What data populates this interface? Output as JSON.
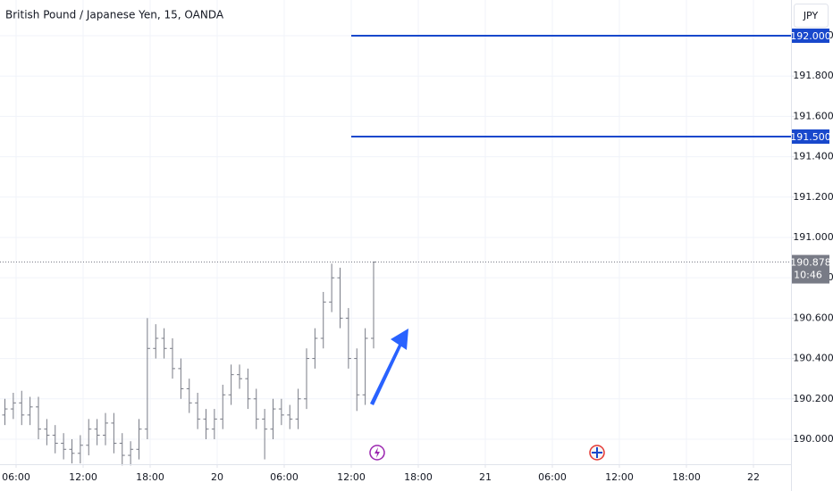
{
  "chart_data": {
    "type": "ohlc",
    "title": "British Pound / Japanese Yen, 15, OANDA",
    "currency": "JPY",
    "color": "#787b86",
    "grid": true,
    "x": [
      5,
      5.75,
      6.5,
      7.25,
      8,
      8.75,
      9.5,
      10.25,
      11,
      11.75,
      12.5,
      13.25,
      14,
      14.75,
      15.5,
      16.25,
      17,
      17.75,
      18.5,
      19.25,
      20,
      20.75,
      21.5,
      22.25,
      23,
      23.75,
      24.5,
      25.25,
      26,
      26.75,
      27.5,
      28.25,
      29,
      29.75,
      30.5,
      31.25,
      32,
      32.75,
      33.5,
      34.25,
      35,
      35.75,
      36.5,
      37.25,
      38
    ],
    "open": [
      190.12,
      190.15,
      190.18,
      190.12,
      190.16,
      190.05,
      190.02,
      189.98,
      189.95,
      189.93,
      189.97,
      190.05,
      190.02,
      190.08,
      189.98,
      189.92,
      189.95,
      190.05,
      190.45,
      190.5,
      190.45,
      190.35,
      190.25,
      190.18,
      190.1,
      190.05,
      190.1,
      190.22,
      190.32,
      190.3,
      190.2,
      190.1,
      190.05,
      190.15,
      190.12,
      190.1,
      190.2,
      190.4,
      190.5,
      190.68,
      190.8,
      190.6,
      190.4,
      190.22,
      190.5
    ],
    "high": [
      190.2,
      190.23,
      190.24,
      190.21,
      190.21,
      190.1,
      190.07,
      190.03,
      190.0,
      190.02,
      190.1,
      190.1,
      190.13,
      190.13,
      190.03,
      189.99,
      190.1,
      190.6,
      190.57,
      190.55,
      190.5,
      190.4,
      190.3,
      190.23,
      190.15,
      190.15,
      190.27,
      190.37,
      190.37,
      190.35,
      190.25,
      190.15,
      190.2,
      190.2,
      190.17,
      190.25,
      190.45,
      190.55,
      190.73,
      190.87,
      190.85,
      190.65,
      190.45,
      190.55,
      190.88
    ],
    "low": [
      190.07,
      190.1,
      190.07,
      190.07,
      190.0,
      189.97,
      189.93,
      189.9,
      189.88,
      189.88,
      189.92,
      189.97,
      189.97,
      189.93,
      189.87,
      189.87,
      189.9,
      190.0,
      190.4,
      190.4,
      190.3,
      190.2,
      190.13,
      190.05,
      190.0,
      190.0,
      190.05,
      190.17,
      190.25,
      190.15,
      190.05,
      189.9,
      190.0,
      190.07,
      190.05,
      190.05,
      190.15,
      190.35,
      190.45,
      190.63,
      190.55,
      190.35,
      190.14,
      190.17,
      190.45
    ],
    "close": [
      190.15,
      190.18,
      190.12,
      190.16,
      190.05,
      190.02,
      189.98,
      189.95,
      189.93,
      189.97,
      190.05,
      190.02,
      190.08,
      189.98,
      189.92,
      189.95,
      190.05,
      190.45,
      190.5,
      190.45,
      190.35,
      190.25,
      190.18,
      190.1,
      190.05,
      190.1,
      190.22,
      190.32,
      190.3,
      190.2,
      190.1,
      190.05,
      190.15,
      190.12,
      190.1,
      190.2,
      190.4,
      190.5,
      190.68,
      190.8,
      190.6,
      190.4,
      190.22,
      190.5,
      190.878
    ],
    "xlim": [
      4.56,
      75.36
    ],
    "xticks": [
      {
        "value": 6,
        "label": "06:00"
      },
      {
        "value": 12,
        "label": "12:00"
      },
      {
        "value": 18,
        "label": "18:00"
      },
      {
        "value": 24,
        "label": "20"
      },
      {
        "value": 30,
        "label": "06:00"
      },
      {
        "value": 36,
        "label": "12:00"
      },
      {
        "value": 42,
        "label": "18:00"
      },
      {
        "value": 48,
        "label": "21"
      },
      {
        "value": 54,
        "label": "06:00"
      },
      {
        "value": 60,
        "label": "12:00"
      },
      {
        "value": 66,
        "label": "18:00"
      },
      {
        "value": 72,
        "label": "22"
      }
    ],
    "ylim": [
      189.876,
      192.177
    ],
    "yticks": [
      {
        "value": 190,
        "label": "190.000"
      },
      {
        "value": 190.2,
        "label": "190.200"
      },
      {
        "value": 190.4,
        "label": "190.400"
      },
      {
        "value": 190.6,
        "label": "190.600"
      },
      {
        "value": 190.8,
        "label": "190.800"
      },
      {
        "value": 191,
        "label": "191.000"
      },
      {
        "value": 191.2,
        "label": "191.200"
      },
      {
        "value": 191.4,
        "label": "191.400"
      },
      {
        "value": 191.6,
        "label": "191.600"
      },
      {
        "value": 191.8,
        "label": "191.800"
      },
      {
        "value": 192,
        "label": "192.000"
      }
    ],
    "levels": [
      {
        "value": 192,
        "label": "192.000",
        "x_start": 36,
        "color": "#1848cc"
      },
      {
        "value": 191.5,
        "label": "191.500",
        "x_start": 36,
        "color": "#1848cc"
      }
    ],
    "last_price": {
      "value": 190.878,
      "label": "190.878",
      "countdown": "10:46"
    }
  }
}
